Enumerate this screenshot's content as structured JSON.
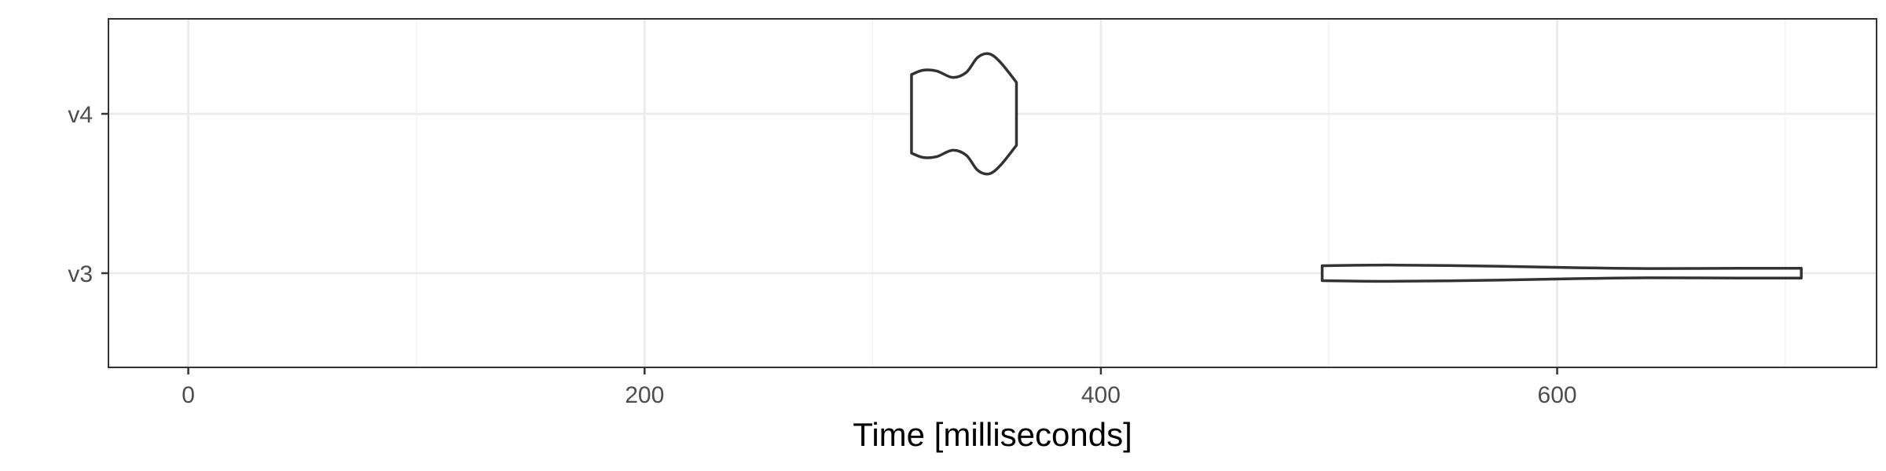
{
  "chart_data": {
    "type": "violin",
    "title": "",
    "xlabel": "Time [milliseconds]",
    "ylabel": "",
    "categories": [
      "v3",
      "v4"
    ],
    "x_ticks": [
      0,
      200,
      400,
      600
    ],
    "x_tick_labels": [
      "0",
      "200",
      "400",
      "600"
    ],
    "xlim": [
      -35,
      740
    ],
    "grid": true,
    "theme": "bw",
    "colors": {
      "background": "#ffffff",
      "panel_border": "#333333",
      "grid_major": "#ebebeb",
      "grid_minor": "#f2f2f2",
      "violin_stroke": "#333333",
      "violin_fill": "#ffffff",
      "tick_label": "#4d4d4d",
      "axis_title": "#000000"
    },
    "series": [
      {
        "category": "v4",
        "x_min": 317,
        "x_max": 363,
        "density": [
          [
            317,
            0.55
          ],
          [
            322,
            0.61
          ],
          [
            328,
            0.6
          ],
          [
            335,
            0.51
          ],
          [
            341,
            0.58
          ],
          [
            346,
            0.79
          ],
          [
            351,
            0.84
          ],
          [
            356,
            0.72
          ],
          [
            363,
            0.44
          ]
        ]
      },
      {
        "category": "v3",
        "x_min": 497,
        "x_max": 707,
        "density": [
          [
            497,
            0.105
          ],
          [
            527,
            0.114
          ],
          [
            570,
            0.099
          ],
          [
            610,
            0.076
          ],
          [
            640,
            0.065
          ],
          [
            680,
            0.068
          ],
          [
            707,
            0.068
          ]
        ]
      }
    ]
  }
}
